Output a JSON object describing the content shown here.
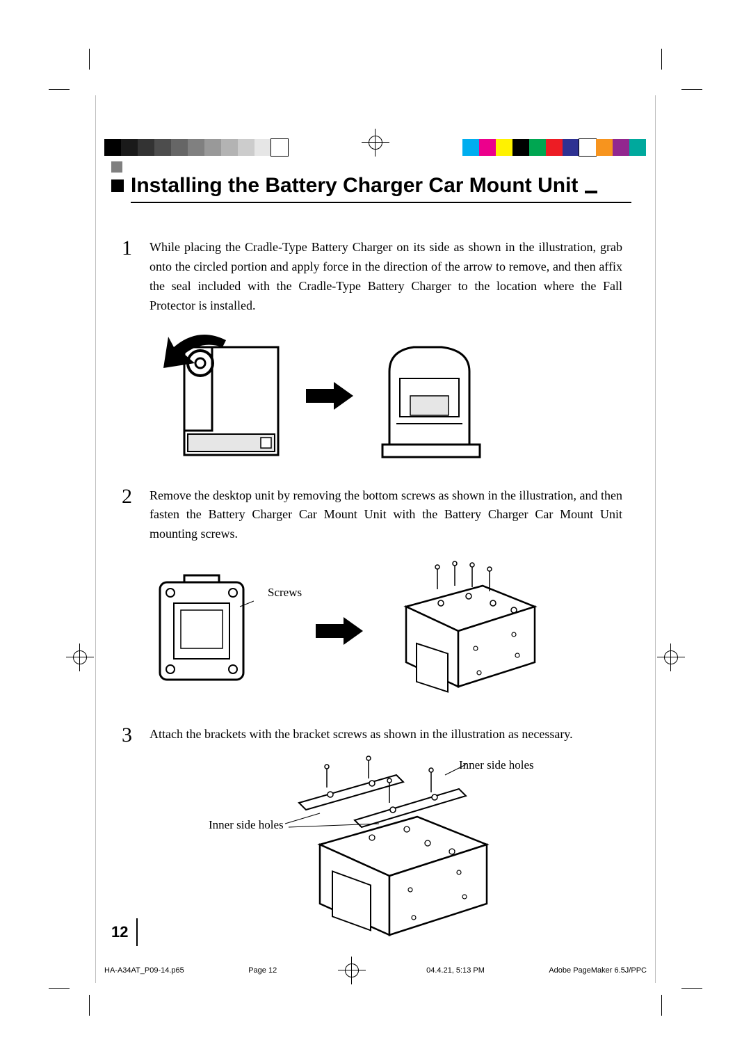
{
  "title": "Installing the Battery Charger Car Mount Unit",
  "steps": [
    {
      "num": "1",
      "text": "While placing the Cradle-Type Battery Charger on its side as shown in the illustration, grab onto the circled portion and apply force in the direction of the arrow to remove, and then affix the seal included with the Cradle-Type Battery Charger to the location where the Fall Protector is installed."
    },
    {
      "num": "2",
      "text": "Remove the desktop unit by removing the bottom screws as shown in the illustration, and then fasten the Battery Charger Car Mount Unit with the Battery Charger Car Mount Unit mounting screws."
    },
    {
      "num": "3",
      "text": "Attach the brackets with the bracket screws as shown in the illustration as necessary."
    }
  ],
  "labels": {
    "screws": "Screws",
    "inner_holes": "Inner side holes"
  },
  "page_number": "12",
  "footer": {
    "file": "HA-A34AT_P09-14.p65",
    "page": "Page 12",
    "datetime": "04.4.21, 5:13 PM",
    "app": "Adobe PageMaker 6.5J/PPC"
  },
  "colorbars": {
    "left_width": 24,
    "left": [
      "#000000",
      "#1a1a1a",
      "#333333",
      "#4d4d4d",
      "#666666",
      "#808080",
      "#999999",
      "#b3b3b3",
      "#cccccc",
      "#e6e6e6",
      "#ffffff"
    ],
    "right_width": 24,
    "right": [
      "#00aeef",
      "#ec008c",
      "#fff200",
      "#000000",
      "#00a651",
      "#ed1c24",
      "#2e3192",
      "#ffffff",
      "#f7941e",
      "#92278f",
      "#00a99d"
    ]
  },
  "crop": {
    "color": "#000000"
  }
}
